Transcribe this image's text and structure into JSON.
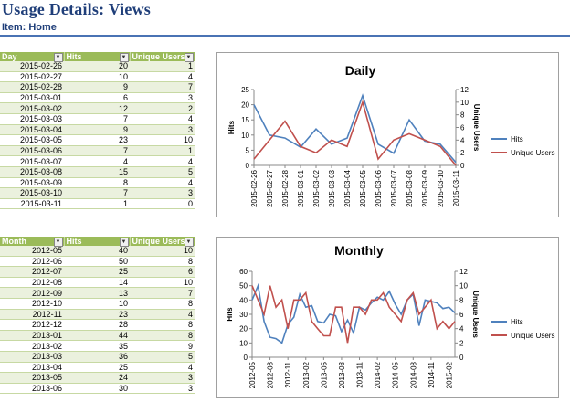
{
  "page": {
    "title": "Usage Details: Views",
    "subtitle": "Item: Home"
  },
  "daily_table": {
    "headers": [
      "Day",
      "Hits",
      "Unique Users"
    ],
    "rows": [
      [
        "2015-02-26",
        "20",
        "1"
      ],
      [
        "2015-02-27",
        "10",
        "4"
      ],
      [
        "2015-02-28",
        "9",
        "7"
      ],
      [
        "2015-03-01",
        "6",
        "3"
      ],
      [
        "2015-03-02",
        "12",
        "2"
      ],
      [
        "2015-03-03",
        "7",
        "4"
      ],
      [
        "2015-03-04",
        "9",
        "3"
      ],
      [
        "2015-03-05",
        "23",
        "10"
      ],
      [
        "2015-03-06",
        "7",
        "1"
      ],
      [
        "2015-03-07",
        "4",
        "4"
      ],
      [
        "2015-03-08",
        "15",
        "5"
      ],
      [
        "2015-03-09",
        "8",
        "4"
      ],
      [
        "2015-03-10",
        "7",
        "3"
      ],
      [
        "2015-03-11",
        "1",
        "0"
      ]
    ]
  },
  "monthly_table": {
    "headers": [
      "Month",
      "Hits",
      "Unique Users"
    ],
    "rows": [
      [
        "2012-05",
        "40",
        "10"
      ],
      [
        "2012-06",
        "50",
        "8"
      ],
      [
        "2012-07",
        "25",
        "6"
      ],
      [
        "2012-08",
        "14",
        "10"
      ],
      [
        "2012-09",
        "13",
        "7"
      ],
      [
        "2012-10",
        "10",
        "8"
      ],
      [
        "2012-11",
        "23",
        "4"
      ],
      [
        "2012-12",
        "28",
        "8"
      ],
      [
        "2013-01",
        "44",
        "8"
      ],
      [
        "2013-02",
        "35",
        "9"
      ],
      [
        "2013-03",
        "36",
        "5"
      ],
      [
        "2013-04",
        "25",
        "4"
      ],
      [
        "2013-05",
        "24",
        "3"
      ],
      [
        "2013-06",
        "30",
        "3"
      ]
    ]
  },
  "colors": {
    "hits": "#4f81bd",
    "users": "#c0504d",
    "header": "#9bbb59",
    "title": "#1f3e79"
  },
  "chart_data": [
    {
      "type": "line",
      "title": "Daily",
      "ylabel": "Hits",
      "y2label": "Unique Users",
      "ylim": [
        0,
        25
      ],
      "yticks": [
        "0",
        "5",
        "10",
        "15",
        "20",
        "25"
      ],
      "y2lim": [
        0,
        12
      ],
      "y2ticks": [
        "0",
        "2",
        "4",
        "6",
        "8",
        "10",
        "12"
      ],
      "x": [
        "2015-02-26",
        "2015-02-27",
        "2015-02-28",
        "2015-03-01",
        "2015-03-02",
        "2015-03-03",
        "2015-03-04",
        "2015-03-05",
        "2015-03-06",
        "2015-03-07",
        "2015-03-08",
        "2015-03-09",
        "2015-03-10",
        "2015-03-11"
      ],
      "series": [
        {
          "name": "Hits",
          "axis": "left",
          "values": [
            20,
            10,
            9,
            6,
            12,
            7,
            9,
            23,
            7,
            4,
            15,
            8,
            7,
            1
          ]
        },
        {
          "name": "Unique Users",
          "axis": "right",
          "values": [
            1,
            4,
            7,
            3,
            2,
            4,
            3,
            10,
            1,
            4,
            5,
            4,
            3,
            0
          ]
        }
      ],
      "legend": "right"
    },
    {
      "type": "line",
      "title": "Monthly",
      "ylabel": "Hits",
      "y2label": "Unique Users",
      "ylim": [
        0,
        60
      ],
      "yticks": [
        "0",
        "10",
        "20",
        "30",
        "40",
        "50",
        "60"
      ],
      "y2lim": [
        0,
        12
      ],
      "y2ticks": [
        "0",
        "2",
        "4",
        "6",
        "8",
        "10",
        "12"
      ],
      "x": [
        "2012-05",
        "2012-06",
        "2012-07",
        "2012-08",
        "2012-09",
        "2012-10",
        "2012-11",
        "2012-12",
        "2013-01",
        "2013-02",
        "2013-03",
        "2013-04",
        "2013-05",
        "2013-06",
        "2013-07",
        "2013-08",
        "2013-09",
        "2013-10",
        "2013-11",
        "2013-12",
        "2014-01",
        "2014-02",
        "2014-03",
        "2014-04",
        "2014-05",
        "2014-06",
        "2014-07",
        "2014-08",
        "2014-09",
        "2014-10",
        "2014-11",
        "2014-12",
        "2015-01",
        "2015-02",
        "2015-03"
      ],
      "xticks": [
        "2012-05",
        "2012-08",
        "2012-11",
        "2013-02",
        "2013-05",
        "2013-08",
        "2013-11",
        "2014-02",
        "2014-05",
        "2014-08",
        "2014-11",
        "2015-02"
      ],
      "series": [
        {
          "name": "Hits",
          "axis": "left",
          "values": [
            40,
            50,
            25,
            14,
            13,
            10,
            23,
            28,
            44,
            35,
            36,
            25,
            24,
            30,
            29,
            18,
            26,
            17,
            35,
            33,
            38,
            42,
            40,
            46,
            37,
            30,
            40,
            44,
            22,
            40,
            39,
            38,
            34,
            35,
            31
          ]
        },
        {
          "name": "Unique Users",
          "axis": "right",
          "values": [
            10,
            8,
            6,
            10,
            7,
            8,
            4,
            8,
            8,
            9,
            5,
            4,
            3,
            3,
            7,
            7,
            2,
            7,
            7,
            6,
            8,
            8,
            9,
            7,
            6,
            5,
            8,
            9,
            6,
            7,
            8,
            4,
            5,
            4,
            5
          ]
        }
      ],
      "legend": "right"
    }
  ]
}
